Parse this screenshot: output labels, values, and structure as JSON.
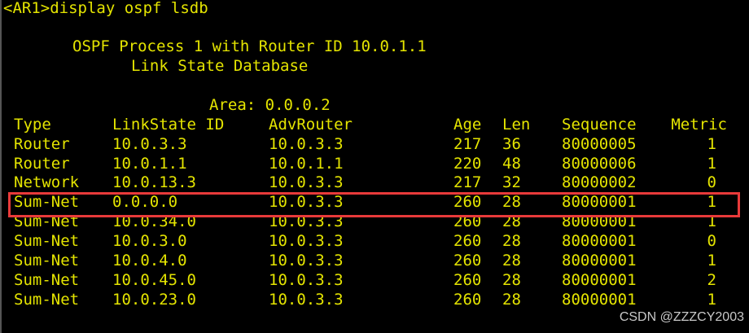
{
  "prompt": "<AR1>display ospf lsdb",
  "process_line": "OSPF Process 1 with Router ID 10.0.1.1",
  "db_title": "Link State Database",
  "area_line": "Area: 0.0.0.2",
  "columns": [
    "Type",
    "LinkState ID",
    "AdvRouter",
    "Age",
    "Len",
    "Sequence",
    "Metric"
  ],
  "rows": [
    [
      "Router",
      "10.0.3.3",
      "10.0.3.3",
      "217",
      "36",
      "80000005",
      "1"
    ],
    [
      "Router",
      "10.0.1.1",
      "10.0.1.1",
      "220",
      "48",
      "80000006",
      "1"
    ],
    [
      "Network",
      "10.0.13.3",
      "10.0.3.3",
      "217",
      "32",
      "80000002",
      "0"
    ],
    [
      "Sum-Net",
      "0.0.0.0",
      "10.0.3.3",
      "260",
      "28",
      "80000001",
      "1"
    ],
    [
      "Sum-Net",
      "10.0.34.0",
      "10.0.3.3",
      "260",
      "28",
      "80000001",
      "1"
    ],
    [
      "Sum-Net",
      "10.0.3.0",
      "10.0.3.3",
      "260",
      "28",
      "80000001",
      "0"
    ],
    [
      "Sum-Net",
      "10.0.4.0",
      "10.0.3.3",
      "260",
      "28",
      "80000001",
      "1"
    ],
    [
      "Sum-Net",
      "10.0.45.0",
      "10.0.3.3",
      "260",
      "28",
      "80000001",
      "2"
    ],
    [
      "Sum-Net",
      "10.0.23.0",
      "10.0.3.3",
      "260",
      "28",
      "80000001",
      "1"
    ]
  ],
  "highlighted_row": 3,
  "highlight_color": "#e83a3a",
  "text_color": "#e4e400",
  "watermark": "CSDN @ZZZCY2003"
}
